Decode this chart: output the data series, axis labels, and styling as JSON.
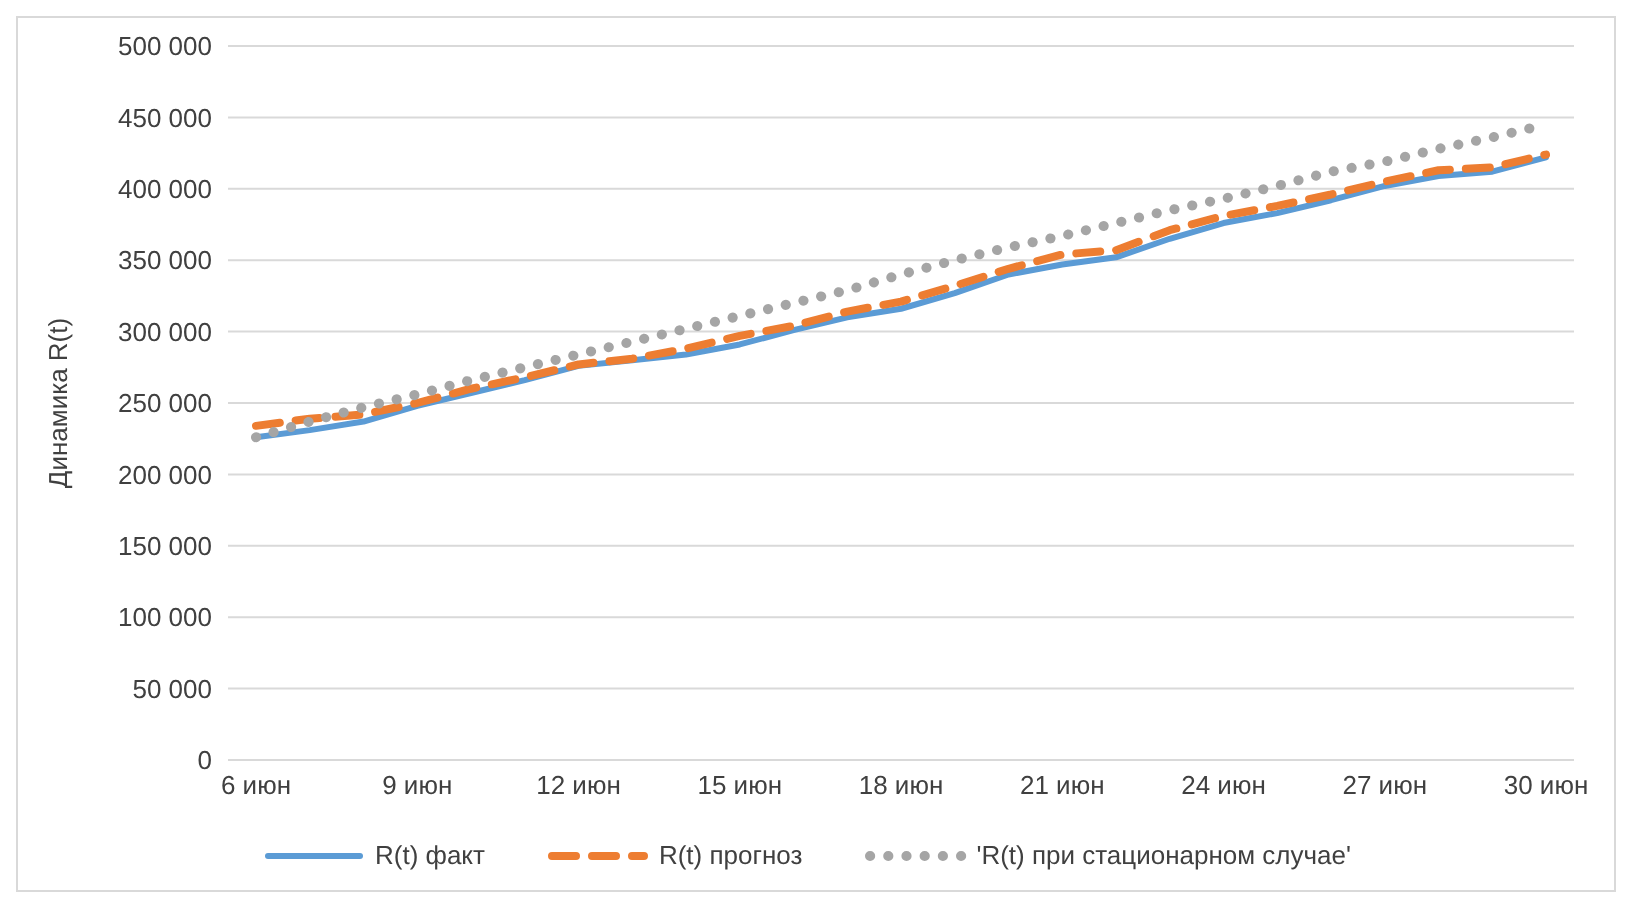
{
  "chart_data": {
    "type": "line",
    "ylabel": "Динамика R(t)",
    "categories": [
      "6 июн",
      null,
      null,
      "9 июн",
      null,
      null,
      "12 июн",
      null,
      null,
      "15 июн",
      null,
      null,
      "18 июн",
      null,
      null,
      "21 июн",
      null,
      null,
      "24 июн",
      null,
      null,
      "27 июн",
      null,
      null,
      "30 июн"
    ],
    "series": [
      {
        "name": "R(t) факт",
        "color": "#5b9bd5",
        "line_style": "solid",
        "values": [
          226000,
          231000,
          237000,
          248000,
          257000,
          266000,
          276000,
          280000,
          284000,
          291000,
          301000,
          310000,
          316000,
          327000,
          340000,
          347000,
          352000,
          365000,
          376000,
          383000,
          392000,
          402000,
          409000,
          412000,
          422000
        ]
      },
      {
        "name": "R(t) прогноз",
        "color": "#ed7d31",
        "line_style": "dashed",
        "values": [
          234000,
          239000,
          242000,
          250000,
          260000,
          268000,
          277000,
          281000,
          288000,
          297000,
          304000,
          314000,
          321000,
          332000,
          344000,
          354000,
          357000,
          371000,
          381000,
          388000,
          396000,
          405000,
          413000,
          415000,
          424000
        ]
      },
      {
        "name": "'R(t) при стационарном случае'",
        "color": "#a5a5a5",
        "line_style": "dotted",
        "values": [
          226000,
          237000,
          247000,
          256000,
          266000,
          275000,
          284000,
          293000,
          302000,
          311000,
          320000,
          329000,
          340000,
          350000,
          359000,
          367000,
          376000,
          385000,
          393000,
          402000,
          412000,
          419000,
          428000,
          436000,
          445000
        ]
      }
    ],
    "ylim": [
      0,
      500000
    ],
    "yticks": [
      0,
      {
        "value": 50000,
        "label": "50 000"
      },
      {
        "value": 100000,
        "label": "100 000"
      },
      {
        "value": 150000,
        "label": "150 000"
      },
      {
        "value": 200000,
        "label": "200 000"
      },
      {
        "value": 250000,
        "label": "250 000"
      },
      {
        "value": 300000,
        "label": "300 000"
      },
      {
        "value": 350000,
        "label": "350 000"
      },
      {
        "value": 400000,
        "label": "400 000"
      },
      {
        "value": 450000,
        "label": "450 000"
      },
      {
        "value": 500000,
        "label": "500 000"
      }
    ],
    "grid": "y",
    "legend": "bottom",
    "marker": "none"
  }
}
